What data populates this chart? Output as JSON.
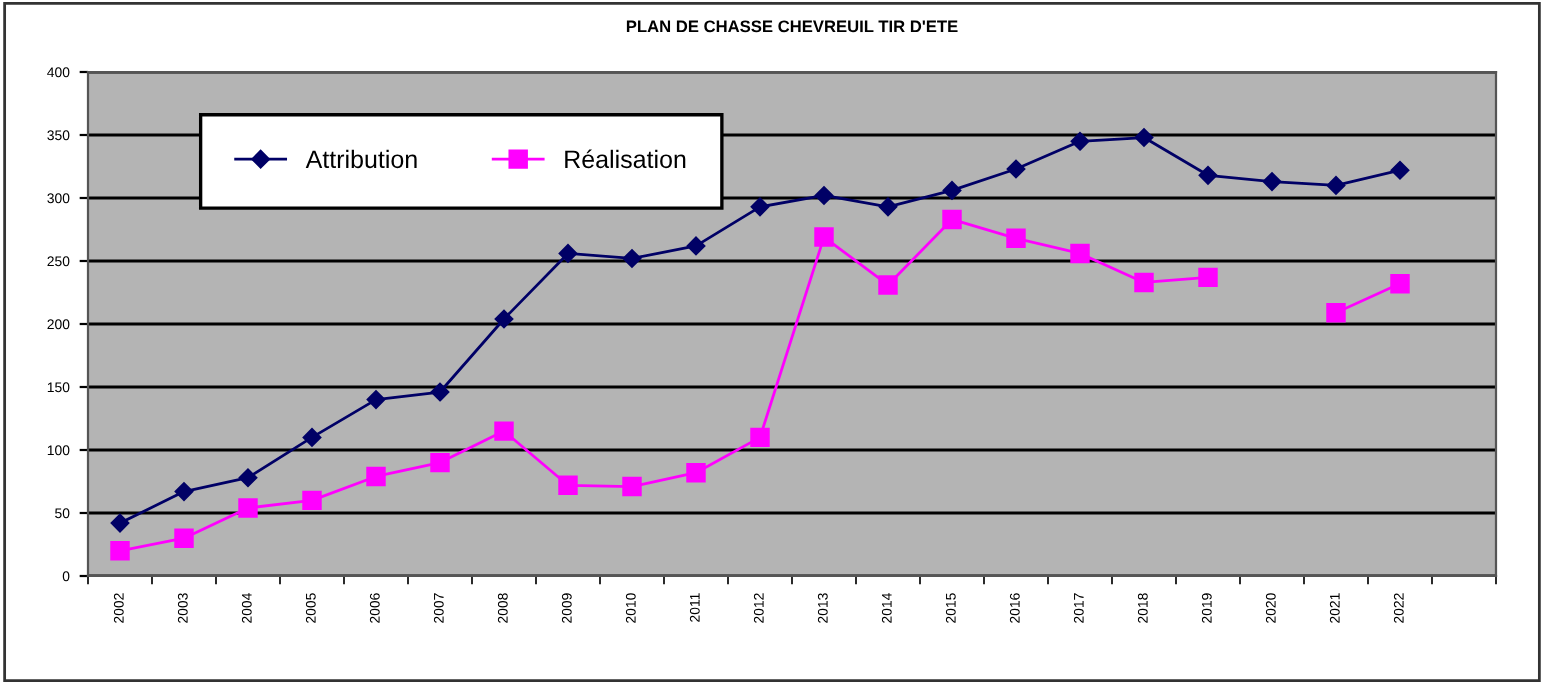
{
  "chart_data": {
    "type": "line",
    "title": "PLAN DE CHASSE CHEVREUIL TIR D'ETE",
    "categories": [
      "2002",
      "2003",
      "2004",
      "2005",
      "2006",
      "2007",
      "2008",
      "2009",
      "2010",
      "2011",
      "2012",
      "2013",
      "2014",
      "2015",
      "2016",
      "2017",
      "2018",
      "2019",
      "2020",
      "2021",
      "2022",
      null
    ],
    "series": [
      {
        "name": "Attribution",
        "color": "#000066",
        "marker": "diamond",
        "values": [
          42,
          67,
          78,
          110,
          140,
          146,
          204,
          256,
          252,
          262,
          293,
          302,
          293,
          306,
          323,
          345,
          348,
          318,
          313,
          310,
          322,
          null
        ]
      },
      {
        "name": "Réalisation",
        "color": "#ff00ff",
        "marker": "square",
        "values": [
          20,
          30,
          54,
          60,
          79,
          90,
          115,
          72,
          71,
          82,
          110,
          269,
          231,
          283,
          268,
          256,
          233,
          237,
          null,
          209,
          232,
          null
        ]
      }
    ],
    "ylim": [
      0,
      400
    ],
    "yticks": [
      0,
      50,
      100,
      150,
      200,
      250,
      300,
      350,
      400
    ],
    "grid": "y",
    "legend": "top left"
  }
}
